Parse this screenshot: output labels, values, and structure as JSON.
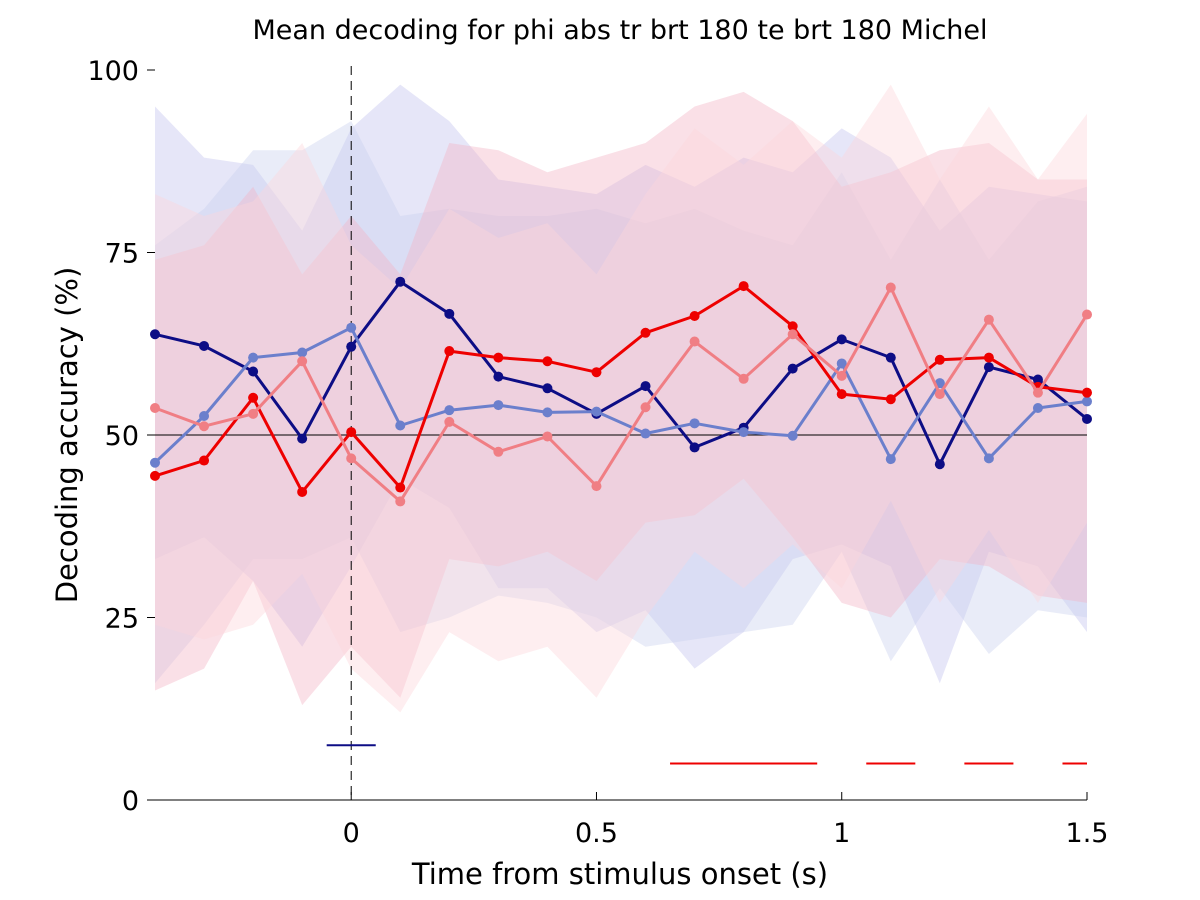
{
  "chart_data": {
    "type": "line",
    "title": "Mean decoding for phi abs tr brt 180 te brt 180  Michel",
    "xlabel": "Time from stimulus onset (s)",
    "ylabel": "Decoding accuracy (%)",
    "xlim": [
      -0.4,
      1.5
    ],
    "ylim": [
      0,
      100
    ],
    "xticks": [
      0,
      0.5,
      1,
      1.5
    ],
    "xtick_labels": [
      "0",
      "0.5",
      "1",
      "1.5"
    ],
    "yticks": [
      0,
      25,
      50,
      75,
      100
    ],
    "ytick_labels": [
      "0",
      "25",
      "50",
      "75",
      "100"
    ],
    "chance_level": 50,
    "stimulus_onset": 0,
    "grid": false,
    "x": [
      -0.4,
      -0.3,
      -0.2,
      -0.1,
      0,
      0.1,
      0.2,
      0.3,
      0.4,
      0.5,
      0.6,
      0.7,
      0.8,
      0.9,
      1.0,
      1.1,
      1.2,
      1.3,
      1.4,
      1.5
    ],
    "series": [
      {
        "color": "#0d0d85",
        "band_color": "#c4c4ee",
        "values": [
          63.8,
          62.2,
          58.7,
          49.5,
          62.1,
          71.0,
          66.6,
          58.0,
          56.4,
          52.9,
          56.7,
          48.3,
          51.0,
          59.1,
          63.1,
          60.6,
          46.0,
          59.3,
          57.6,
          52.2
        ],
        "upper": [
          95,
          88,
          87,
          78,
          92,
          98,
          93,
          85,
          84,
          83,
          87,
          84,
          88,
          86,
          92,
          88,
          78,
          84,
          83,
          82
        ],
        "lower": [
          33,
          36,
          30,
          21,
          32,
          44,
          40,
          29,
          29,
          23,
          26,
          18,
          23,
          33,
          35,
          32,
          16,
          34,
          32,
          23
        ]
      },
      {
        "color": "#6b7fcc",
        "band_color": "#cbd2ef",
        "values": [
          46.2,
          52.6,
          60.6,
          61.3,
          64.7,
          51.3,
          53.4,
          54.1,
          53.1,
          53.2,
          50.2,
          51.6,
          50.4,
          49.9,
          59.8,
          46.7,
          57.1,
          46.8,
          53.7,
          54.6
        ],
        "upper": [
          76,
          81,
          89,
          89,
          93,
          80,
          81,
          80,
          80,
          81,
          79,
          81,
          78,
          76,
          86,
          74,
          85,
          74,
          82,
          84
        ],
        "lower": [
          16,
          24,
          33,
          33,
          36,
          23,
          25,
          28,
          27,
          25,
          21,
          22,
          23,
          24,
          34,
          19,
          29,
          20,
          26,
          25
        ]
      },
      {
        "color": "#ee0000",
        "band_color": "#f2b6c6",
        "values": [
          44.4,
          46.5,
          55.1,
          42.2,
          50.4,
          42.8,
          61.5,
          60.6,
          60.1,
          58.6,
          64.0,
          66.3,
          70.4,
          64.9,
          55.6,
          54.9,
          60.3,
          60.6,
          56.6,
          55.8
        ],
        "upper": [
          74,
          76,
          84,
          72,
          80,
          72,
          90,
          89,
          86,
          88,
          90,
          95,
          97,
          93,
          84,
          86,
          89,
          90,
          85,
          85
        ],
        "lower": [
          15,
          18,
          30,
          13,
          21,
          14,
          33,
          32,
          34,
          30,
          38,
          39,
          44,
          36,
          27,
          25,
          33,
          32,
          28,
          27
        ]
      },
      {
        "color": "#f07e84",
        "band_color": "#fcd6dc",
        "values": [
          53.7,
          51.2,
          52.9,
          60.1,
          46.8,
          40.9,
          51.8,
          47.7,
          49.8,
          43.0,
          53.8,
          62.8,
          57.7,
          63.8,
          58.1,
          70.2,
          55.6,
          65.8,
          55.8,
          66.5
        ],
        "upper": [
          83,
          80,
          82,
          90,
          76,
          70,
          81,
          77,
          79,
          72,
          83,
          92,
          87,
          93,
          88,
          98,
          85,
          95,
          85,
          94
        ],
        "lower": [
          24,
          22,
          24,
          31,
          18,
          12,
          23,
          19,
          21,
          14,
          25,
          34,
          29,
          35,
          29,
          41,
          27,
          37,
          27,
          38
        ]
      }
    ],
    "significance_bars": [
      {
        "color": "#0d0d85",
        "y": 7.5,
        "segments": [
          [
            -0.05,
            0.05
          ]
        ]
      },
      {
        "color": "#ee0000",
        "y": 5.0,
        "segments": [
          [
            0.65,
            0.95
          ],
          [
            1.05,
            1.15
          ],
          [
            1.25,
            1.35
          ],
          [
            1.45,
            1.5
          ]
        ]
      }
    ]
  }
}
